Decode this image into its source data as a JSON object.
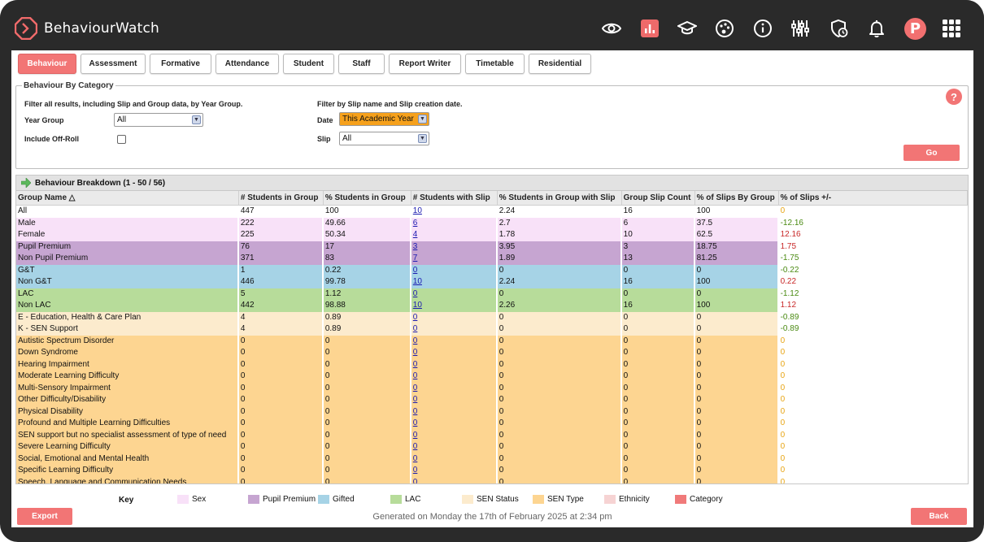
{
  "app": {
    "title": "BehaviourWatch",
    "user_initial": "P"
  },
  "topbar_icons": [
    "eye-icon",
    "chart-icon",
    "graduation-cap-icon",
    "palette-icon",
    "info-icon",
    "sliders-icon",
    "shield-clock-icon",
    "bell-icon",
    "apps-grid-icon"
  ],
  "tabs": [
    "Behaviour",
    "Assessment",
    "Formative",
    "Attendance",
    "Student",
    "Staff",
    "Report Writer",
    "Timetable",
    "Residential"
  ],
  "active_tab": "Behaviour",
  "filter": {
    "legend": "Behaviour By Category",
    "left_hint": "Filter all results, including Slip and Group data, by Year Group.",
    "right_hint": "Filter by Slip name and Slip creation date.",
    "year_group_label": "Year Group",
    "year_group_value": "All",
    "include_offroll_label": "Include Off-Roll",
    "date_label": "Date",
    "date_value": "This Academic Year",
    "slip_label": "Slip",
    "slip_value": "All",
    "help": "?",
    "go": "Go"
  },
  "breakdown": {
    "title": "Behaviour Breakdown  (1 - 50 / 56)",
    "columns": [
      "Group Name  △",
      "# Students in Group",
      "% Students in Group",
      "# Students with Slip",
      "% Students in Group with Slip",
      "Group Slip Count",
      "% of Slips By Group",
      "% of Slips +/-"
    ],
    "rows": [
      {
        "name": "All",
        "cat": "none",
        "n": "447",
        "pct": "100",
        "slip": "10",
        "pctslip": "2.24",
        "count": "16",
        "pctgroup": "100",
        "diff": "0",
        "sign": "zero"
      },
      {
        "name": "Male",
        "cat": "sex",
        "n": "222",
        "pct": "49.66",
        "slip": "6",
        "pctslip": "2.7",
        "count": "6",
        "pctgroup": "37.5",
        "diff": "-12.16",
        "sign": "neg"
      },
      {
        "name": "Female",
        "cat": "sex",
        "n": "225",
        "pct": "50.34",
        "slip": "4",
        "pctslip": "1.78",
        "count": "10",
        "pctgroup": "62.5",
        "diff": "12.16",
        "sign": "pos"
      },
      {
        "name": "Pupil Premium",
        "cat": "pp",
        "n": "76",
        "pct": "17",
        "slip": "3",
        "pctslip": "3.95",
        "count": "3",
        "pctgroup": "18.75",
        "diff": "1.75",
        "sign": "pos"
      },
      {
        "name": "Non Pupil Premium",
        "cat": "pp",
        "n": "371",
        "pct": "83",
        "slip": "7",
        "pctslip": "1.89",
        "count": "13",
        "pctgroup": "81.25",
        "diff": "-1.75",
        "sign": "neg"
      },
      {
        "name": "G&T",
        "cat": "gifted",
        "n": "1",
        "pct": "0.22",
        "slip": "0",
        "pctslip": "0",
        "count": "0",
        "pctgroup": "0",
        "diff": "-0.22",
        "sign": "neg"
      },
      {
        "name": "Non G&T",
        "cat": "gifted",
        "n": "446",
        "pct": "99.78",
        "slip": "10",
        "pctslip": "2.24",
        "count": "16",
        "pctgroup": "100",
        "diff": "0.22",
        "sign": "pos"
      },
      {
        "name": "LAC",
        "cat": "lac",
        "n": "5",
        "pct": "1.12",
        "slip": "0",
        "pctslip": "0",
        "count": "0",
        "pctgroup": "0",
        "diff": "-1.12",
        "sign": "neg"
      },
      {
        "name": "Non LAC",
        "cat": "lac",
        "n": "442",
        "pct": "98.88",
        "slip": "10",
        "pctslip": "2.26",
        "count": "16",
        "pctgroup": "100",
        "diff": "1.12",
        "sign": "pos"
      },
      {
        "name": "E - Education, Health & Care Plan",
        "cat": "senstatus",
        "n": "4",
        "pct": "0.89",
        "slip": "0",
        "pctslip": "0",
        "count": "0",
        "pctgroup": "0",
        "diff": "-0.89",
        "sign": "neg"
      },
      {
        "name": "K - SEN Support",
        "cat": "senstatus",
        "n": "4",
        "pct": "0.89",
        "slip": "0",
        "pctslip": "0",
        "count": "0",
        "pctgroup": "0",
        "diff": "-0.89",
        "sign": "neg"
      },
      {
        "name": "Autistic Spectrum Disorder",
        "cat": "sentype",
        "n": "0",
        "pct": "0",
        "slip": "0",
        "pctslip": "0",
        "count": "0",
        "pctgroup": "0",
        "diff": "0",
        "sign": "zero"
      },
      {
        "name": "Down Syndrome",
        "cat": "sentype",
        "n": "0",
        "pct": "0",
        "slip": "0",
        "pctslip": "0",
        "count": "0",
        "pctgroup": "0",
        "diff": "0",
        "sign": "zero"
      },
      {
        "name": "Hearing Impairment",
        "cat": "sentype",
        "n": "0",
        "pct": "0",
        "slip": "0",
        "pctslip": "0",
        "count": "0",
        "pctgroup": "0",
        "diff": "0",
        "sign": "zero"
      },
      {
        "name": "Moderate Learning Difficulty",
        "cat": "sentype",
        "n": "0",
        "pct": "0",
        "slip": "0",
        "pctslip": "0",
        "count": "0",
        "pctgroup": "0",
        "diff": "0",
        "sign": "zero"
      },
      {
        "name": "Multi-Sensory Impairment",
        "cat": "sentype",
        "n": "0",
        "pct": "0",
        "slip": "0",
        "pctslip": "0",
        "count": "0",
        "pctgroup": "0",
        "diff": "0",
        "sign": "zero"
      },
      {
        "name": "Other Difficulty/Disability",
        "cat": "sentype",
        "n": "0",
        "pct": "0",
        "slip": "0",
        "pctslip": "0",
        "count": "0",
        "pctgroup": "0",
        "diff": "0",
        "sign": "zero"
      },
      {
        "name": "Physical Disability",
        "cat": "sentype",
        "n": "0",
        "pct": "0",
        "slip": "0",
        "pctslip": "0",
        "count": "0",
        "pctgroup": "0",
        "diff": "0",
        "sign": "zero"
      },
      {
        "name": "Profound and Multiple Learning Difficulties",
        "cat": "sentype",
        "n": "0",
        "pct": "0",
        "slip": "0",
        "pctslip": "0",
        "count": "0",
        "pctgroup": "0",
        "diff": "0",
        "sign": "zero"
      },
      {
        "name": "SEN support but no specialist assessment of type of need",
        "cat": "sentype",
        "n": "0",
        "pct": "0",
        "slip": "0",
        "pctslip": "0",
        "count": "0",
        "pctgroup": "0",
        "diff": "0",
        "sign": "zero"
      },
      {
        "name": "Severe Learning Difficulty",
        "cat": "sentype",
        "n": "0",
        "pct": "0",
        "slip": "0",
        "pctslip": "0",
        "count": "0",
        "pctgroup": "0",
        "diff": "0",
        "sign": "zero"
      },
      {
        "name": "Social, Emotional and Mental Health",
        "cat": "sentype",
        "n": "0",
        "pct": "0",
        "slip": "0",
        "pctslip": "0",
        "count": "0",
        "pctgroup": "0",
        "diff": "0",
        "sign": "zero"
      },
      {
        "name": "Specific Learning Difficulty",
        "cat": "sentype",
        "n": "0",
        "pct": "0",
        "slip": "0",
        "pctslip": "0",
        "count": "0",
        "pctgroup": "0",
        "diff": "0",
        "sign": "zero"
      },
      {
        "name": "Speech, Language and Communication Needs",
        "cat": "sentype",
        "n": "0",
        "pct": "0",
        "slip": "0",
        "pctslip": "0",
        "count": "0",
        "pctgroup": "0",
        "diff": "0",
        "sign": "zero"
      }
    ]
  },
  "key": {
    "title": "Key",
    "items": [
      {
        "label": "Sex",
        "color": "#f8e1f8"
      },
      {
        "label": "Pupil Premium",
        "color": "#c6a5d1"
      },
      {
        "label": "Gifted",
        "color": "#a6d3e6"
      },
      {
        "label": "LAC",
        "color": "#b7dc9a"
      },
      {
        "label": "SEN Status",
        "color": "#fcebcd"
      },
      {
        "label": "SEN Type",
        "color": "#fdd591"
      },
      {
        "label": "Ethnicity",
        "color": "#f6d3d3"
      },
      {
        "label": "Category",
        "color": "#f07a7a"
      }
    ]
  },
  "footer": {
    "export": "Export",
    "generated": "Generated on Monday the 17th of February 2025 at 2:34 pm",
    "back": "Back"
  },
  "category_colors": {
    "none": "#ffffff",
    "sex": "#f8e1f8",
    "pp": "#c6a5d1",
    "gifted": "#a6d3e6",
    "lac": "#b7dc9a",
    "senstatus": "#fcebcd",
    "sentype": "#fdd591"
  }
}
